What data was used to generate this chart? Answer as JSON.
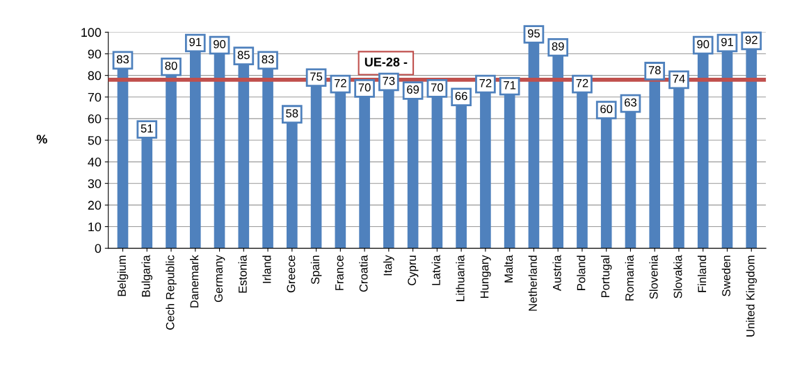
{
  "chart_data": {
    "type": "bar",
    "ylabel": "%",
    "categories": [
      "Belgium",
      "Bulgaria",
      "Cech Republic",
      "Danemark",
      "Germany",
      "Estonia",
      "Irland",
      "Greece",
      "Spain",
      "France",
      "Croatia",
      "Italy",
      "Cypru",
      "Latvia",
      "Lithuania",
      "Hungary",
      "Malta",
      "Netherland",
      "Austria",
      "Poland",
      "Portugal",
      "Romania",
      "Slovenia",
      "Slovakia",
      "Finland",
      "Sweden",
      "United Kingdom"
    ],
    "values": [
      83,
      51,
      80,
      91,
      90,
      85,
      83,
      58,
      75,
      72,
      70,
      73,
      69,
      70,
      66,
      72,
      71,
      95,
      89,
      72,
      60,
      63,
      78,
      74,
      90,
      91,
      92
    ],
    "color": "#4f81bd",
    "ylim": [
      0,
      100
    ],
    "yticks": [
      0,
      10,
      20,
      30,
      40,
      50,
      60,
      70,
      80,
      90,
      100
    ],
    "grid": "y",
    "data_labels": true,
    "ref_lines": [
      {
        "axis": "y",
        "value": 78,
        "label": "UE-28 -",
        "color": "#c0504d"
      }
    ]
  }
}
